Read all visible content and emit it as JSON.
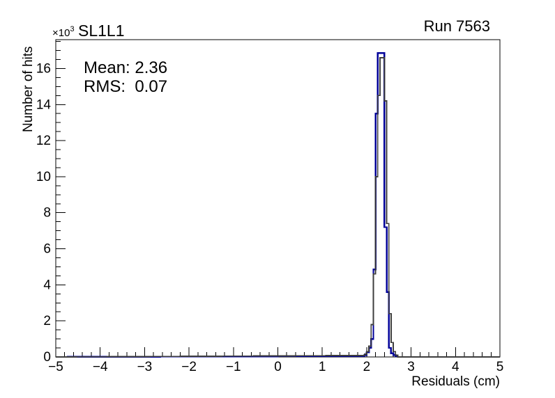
{
  "window": {
    "background": "#ffffff"
  },
  "chart_data": {
    "type": "histogram-step",
    "title": "SL1L1",
    "corner_label": "Run 7563",
    "stats_lines": [
      "Mean: 2.36",
      "RMS:  0.07"
    ],
    "xlabel": "Residuals (cm)",
    "ylabel": "Number of hits",
    "y_power_label": {
      "prefix": "×10",
      "exponent": "3"
    },
    "y_axis_unit": 1000,
    "xlim": [
      -5,
      5
    ],
    "ylim_k": [
      0,
      17.6
    ],
    "x_minor_step": 0.2,
    "y_minor_step_k": 0.5,
    "grid": false,
    "legend": "none",
    "axis_color": "#000000",
    "x_ticks": [
      {
        "v": -5,
        "label": "−5"
      },
      {
        "v": -4,
        "label": "−4"
      },
      {
        "v": -3,
        "label": "−3"
      },
      {
        "v": -2,
        "label": "−2"
      },
      {
        "v": -1,
        "label": "−1"
      },
      {
        "v": 0,
        "label": "0"
      },
      {
        "v": 1,
        "label": "1"
      },
      {
        "v": 2,
        "label": "2"
      },
      {
        "v": 3,
        "label": "3"
      },
      {
        "v": 4,
        "label": "4"
      },
      {
        "v": 5,
        "label": "5"
      }
    ],
    "y_ticks": [
      {
        "v": 0,
        "label": "0"
      },
      {
        "v": 2,
        "label": "2"
      },
      {
        "v": 4,
        "label": "4"
      },
      {
        "v": 6,
        "label": "6"
      },
      {
        "v": 8,
        "label": "8"
      },
      {
        "v": 10,
        "label": "10"
      },
      {
        "v": 12,
        "label": "12"
      },
      {
        "v": 14,
        "label": "14"
      },
      {
        "v": 16,
        "label": "16"
      }
    ],
    "series": [
      {
        "name": "histogram-primary-blue",
        "color": "#000099",
        "line_width": 2.4,
        "bin_start": 1.9,
        "bin_width": 0.05,
        "values_k": [
          0.05,
          0.1,
          0.25,
          0.5,
          1.0,
          4.85,
          13.5,
          16.85,
          16.85,
          16.85,
          7.2,
          3.6,
          0.5,
          0.2,
          0.1,
          0.04
        ]
      },
      {
        "name": "histogram-overlay-dark",
        "color": "#3d3d3d",
        "line_width": 1.8,
        "bin_start": 1.9,
        "bin_width": 0.05,
        "values_k": [
          0.08,
          0.15,
          0.3,
          0.6,
          1.8,
          4.6,
          10.0,
          14.5,
          16.6,
          16.6,
          14.2,
          7.4,
          2.4,
          0.8,
          0.3,
          0.1
        ]
      }
    ]
  }
}
